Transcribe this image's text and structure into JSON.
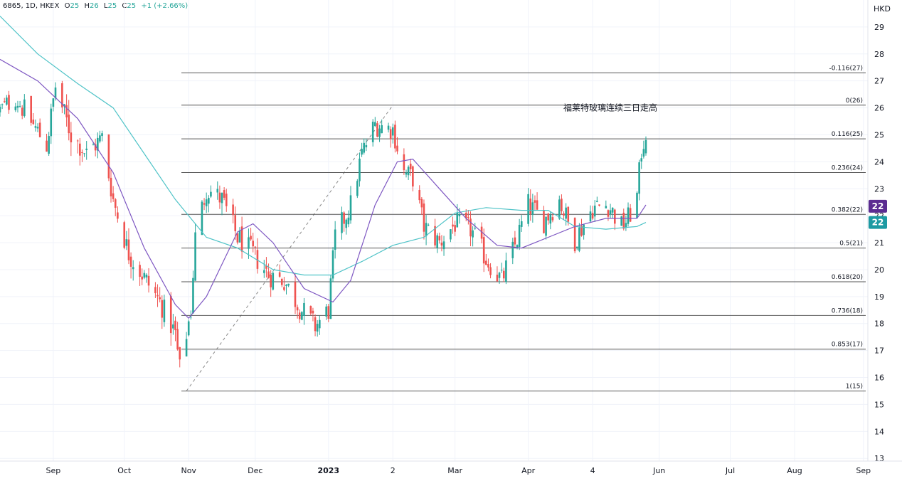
{
  "header": {
    "symbol": "6865, 1D, HKEX",
    "o_label": "O",
    "o_value": "25",
    "h_label": "H",
    "h_value": "26",
    "l_label": "L",
    "l_value": "25",
    "c_label": "C",
    "c_value": "25",
    "change": "+1 (+2.66%)"
  },
  "currency": "HKD",
  "colors": {
    "up": "#26a69a",
    "down": "#ef5350",
    "ma_short": "#7e57c2",
    "ma_long": "#4fc3c7",
    "fib": "#555555",
    "badge_purple": "#5b2c91",
    "badge_teal": "#1d9aa3"
  },
  "chart_data": {
    "type": "candlestick",
    "title": "",
    "ylim": [
      12.9,
      30.0
    ],
    "y_ticks": [
      13,
      14,
      15,
      16,
      17,
      18,
      19,
      20,
      21,
      22,
      23,
      24,
      25,
      26,
      27,
      28,
      29
    ],
    "x_axis": {
      "range": [
        "2022-08-08",
        "2023-09-03"
      ],
      "labels": [
        {
          "label": "Sep",
          "date": "2022-09-01",
          "bold": false
        },
        {
          "label": "Oct",
          "date": "2022-10-03",
          "bold": false
        },
        {
          "label": "Nov",
          "date": "2022-11-01",
          "bold": false
        },
        {
          "label": "Dec",
          "date": "2022-12-01",
          "bold": false
        },
        {
          "label": "2023",
          "date": "2023-01-03",
          "bold": true
        },
        {
          "label": "2",
          "date": "2023-02-01",
          "bold": false
        },
        {
          "label": "Mar",
          "date": "2023-03-01",
          "bold": false
        },
        {
          "label": "Apr",
          "date": "2023-04-03",
          "bold": false
        },
        {
          "label": "4",
          "date": "2023-05-02",
          "bold": false
        },
        {
          "label": "Jun",
          "date": "2023-06-01",
          "bold": false
        },
        {
          "label": "Jul",
          "date": "2023-07-03",
          "bold": false
        },
        {
          "label": "Aug",
          "date": "2023-08-01",
          "bold": false
        },
        {
          "label": "Sep",
          "date": "2023-09-01",
          "bold": false
        }
      ]
    },
    "fib_retracement": {
      "from": {
        "date": "2022-10-31",
        "price": 15.5
      },
      "to": {
        "date": "2023-02-01",
        "price": 26.1
      },
      "extends_to": "2023-09-01",
      "levels": [
        {
          "label": "-0.116(27)",
          "price": 27.3
        },
        {
          "label": "0(26)",
          "price": 26.1
        },
        {
          "label": "0.116(25)",
          "price": 24.85
        },
        {
          "label": "0.236(24)",
          "price": 23.6
        },
        {
          "label": "0.382(22)",
          "price": 22.05
        },
        {
          "label": "0.5(21)",
          "price": 20.8
        },
        {
          "label": "0.618(20)",
          "price": 19.55
        },
        {
          "label": "0.736(18)",
          "price": 18.3
        },
        {
          "label": "0.853(17)",
          "price": 17.05
        },
        {
          "label": "1(15)",
          "price": 15.5
        }
      ]
    },
    "annotation": {
      "text": "福莱特玻璃连续三日走高",
      "date": "2023-05-10",
      "price": 26.0
    },
    "price_badges": [
      {
        "label": "22",
        "price": 22.35,
        "color": "#5b2c91"
      },
      {
        "label": "22",
        "price": 21.75,
        "color": "#1d9aa3"
      }
    ],
    "waypoints": [
      [
        "2022-08-08",
        25.9,
        26.2,
        25.5
      ],
      [
        "2022-08-15",
        26.4,
        26.6,
        25.8
      ],
      [
        "2022-08-22",
        25.5,
        26.2,
        24.7
      ],
      [
        "2022-08-29",
        24.6,
        25.3,
        23.6
      ],
      [
        "2022-09-02",
        26.8,
        27.3,
        26.0
      ],
      [
        "2022-09-09",
        25.0,
        26.2,
        23.6
      ],
      [
        "2022-09-16",
        24.3,
        25.0,
        23.4
      ],
      [
        "2022-09-23",
        24.9,
        25.2,
        23.9
      ],
      [
        "2022-09-28",
        22.6,
        23.5,
        22.0
      ],
      [
        "2022-10-05",
        20.6,
        21.8,
        19.8
      ],
      [
        "2022-10-12",
        19.7,
        20.8,
        19.0
      ],
      [
        "2022-10-19",
        18.8,
        19.8,
        17.9
      ],
      [
        "2022-10-26",
        17.6,
        19.3,
        17.0
      ],
      [
        "2022-10-28",
        16.3,
        17.5,
        15.5
      ],
      [
        "2022-11-02",
        18.5,
        19.3,
        18.0
      ],
      [
        "2022-11-04",
        21.2,
        22.2,
        20.4
      ],
      [
        "2022-11-09",
        23.0,
        24.1,
        22.3
      ],
      [
        "2022-11-16",
        22.6,
        24.0,
        22.0
      ],
      [
        "2022-11-23",
        21.2,
        22.5,
        20.5
      ],
      [
        "2022-11-30",
        20.6,
        21.8,
        19.8
      ],
      [
        "2022-12-07",
        19.8,
        20.8,
        19.0
      ],
      [
        "2022-12-14",
        19.6,
        21.0,
        19.0
      ],
      [
        "2022-12-21",
        18.6,
        19.5,
        17.8
      ],
      [
        "2022-12-28",
        17.9,
        18.8,
        17.5
      ],
      [
        "2023-01-03",
        18.5,
        19.2,
        18.0
      ],
      [
        "2023-01-06",
        21.2,
        22.0,
        20.5
      ],
      [
        "2023-01-13",
        22.4,
        23.5,
        21.9
      ],
      [
        "2023-01-18",
        24.3,
        24.8,
        23.5
      ],
      [
        "2023-01-24",
        25.4,
        25.8,
        24.9
      ],
      [
        "2023-02-01",
        25.2,
        26.1,
        24.6
      ],
      [
        "2023-02-06",
        23.6,
        24.3,
        22.7
      ],
      [
        "2023-02-10",
        23.4,
        24.0,
        22.8
      ],
      [
        "2023-02-15",
        21.6,
        22.4,
        20.9
      ],
      [
        "2023-02-22",
        21.0,
        21.8,
        20.5
      ],
      [
        "2023-03-01",
        21.7,
        22.5,
        21.0
      ],
      [
        "2023-03-08",
        21.5,
        22.6,
        20.9
      ],
      [
        "2023-03-15",
        20.4,
        21.3,
        19.8
      ],
      [
        "2023-03-22",
        19.6,
        20.5,
        19.0
      ],
      [
        "2023-03-28",
        20.9,
        21.6,
        20.4
      ],
      [
        "2023-04-03",
        22.4,
        23.4,
        21.8
      ],
      [
        "2023-04-10",
        21.8,
        22.6,
        21.2
      ],
      [
        "2023-04-17",
        22.6,
        23.2,
        22.0
      ],
      [
        "2023-04-24",
        21.1,
        21.8,
        20.6
      ],
      [
        "2023-05-02",
        22.3,
        23.0,
        21.6
      ],
      [
        "2023-05-09",
        22.4,
        23.0,
        21.8
      ],
      [
        "2023-05-15",
        21.6,
        22.5,
        21.1
      ],
      [
        "2023-05-18",
        21.9,
        22.8,
        21.3
      ],
      [
        "2023-05-22",
        22.7,
        23.3,
        22.3
      ],
      [
        "2023-05-24",
        24.4,
        24.7,
        22.8
      ],
      [
        "2023-05-26",
        25.1,
        25.6,
        24.3
      ]
    ],
    "ma_short": {
      "name": "",
      "points": [
        [
          "2022-08-08",
          27.8
        ],
        [
          "2022-08-25",
          27.0
        ],
        [
          "2022-09-12",
          25.6
        ],
        [
          "2022-09-28",
          23.6
        ],
        [
          "2022-10-12",
          20.8
        ],
        [
          "2022-10-26",
          18.7
        ],
        [
          "2022-11-01",
          18.2
        ],
        [
          "2022-11-09",
          19.0
        ],
        [
          "2022-11-23",
          21.4
        ],
        [
          "2022-11-30",
          21.7
        ],
        [
          "2022-12-09",
          21.0
        ],
        [
          "2022-12-23",
          19.3
        ],
        [
          "2023-01-05",
          18.8
        ],
        [
          "2023-01-13",
          19.6
        ],
        [
          "2023-01-24",
          22.4
        ],
        [
          "2023-02-03",
          24.0
        ],
        [
          "2023-02-10",
          24.1
        ],
        [
          "2023-02-22",
          23.0
        ],
        [
          "2023-03-06",
          21.9
        ],
        [
          "2023-03-20",
          20.9
        ],
        [
          "2023-03-31",
          20.8
        ],
        [
          "2023-04-12",
          21.2
        ],
        [
          "2023-04-24",
          21.6
        ],
        [
          "2023-05-08",
          21.9
        ],
        [
          "2023-05-22",
          21.9
        ],
        [
          "2023-05-26",
          22.4
        ]
      ]
    },
    "ma_long": {
      "name": "",
      "points": [
        [
          "2022-08-08",
          29.4
        ],
        [
          "2022-08-25",
          28.0
        ],
        [
          "2022-09-12",
          26.9
        ],
        [
          "2022-09-28",
          26.0
        ],
        [
          "2022-10-12",
          24.3
        ],
        [
          "2022-10-26",
          22.6
        ],
        [
          "2022-11-09",
          21.2
        ],
        [
          "2022-11-23",
          20.8
        ],
        [
          "2022-12-09",
          20.0
        ],
        [
          "2022-12-23",
          19.8
        ],
        [
          "2023-01-05",
          19.8
        ],
        [
          "2023-01-18",
          20.3
        ],
        [
          "2023-02-01",
          20.9
        ],
        [
          "2023-02-15",
          21.2
        ],
        [
          "2023-03-01",
          22.1
        ],
        [
          "2023-03-15",
          22.3
        ],
        [
          "2023-03-31",
          22.2
        ],
        [
          "2023-04-12",
          22.2
        ],
        [
          "2023-04-24",
          21.6
        ],
        [
          "2023-05-08",
          21.5
        ],
        [
          "2023-05-22",
          21.6
        ],
        [
          "2023-05-26",
          21.75
        ]
      ]
    }
  }
}
